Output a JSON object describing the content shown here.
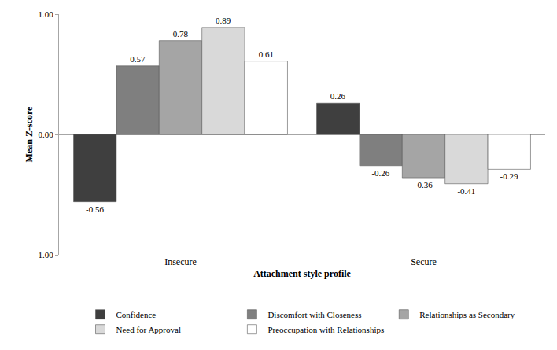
{
  "chart_data": {
    "type": "bar",
    "x_label": "Attachment style profile",
    "y_label": "Mean Z-score",
    "categories": [
      "Insecure",
      "Secure"
    ],
    "series": [
      {
        "name": "Confidence",
        "color": "#3f3f3f",
        "values": [
          -0.56,
          0.26
        ]
      },
      {
        "name": "Discomfort with Closeness",
        "color": "#7f7f7f",
        "values": [
          0.57,
          -0.26
        ]
      },
      {
        "name": "Relationships as Secondary",
        "color": "#a5a5a5",
        "values": [
          0.78,
          -0.36
        ]
      },
      {
        "name": "Need for Approval",
        "color": "#d9d9d9",
        "values": [
          0.89,
          -0.41
        ]
      },
      {
        "name": "Preoccupation with Relationships",
        "color": "#ffffff",
        "values": [
          0.61,
          -0.29
        ]
      }
    ],
    "ylim": [
      -1,
      1
    ],
    "yticks": [
      {
        "value": -1,
        "label": "-1.00"
      },
      {
        "value": 0,
        "label": "0.00"
      },
      {
        "value": 1,
        "label": "1.00"
      }
    ],
    "grid": true,
    "data_labels": true,
    "legend": "bottom"
  }
}
